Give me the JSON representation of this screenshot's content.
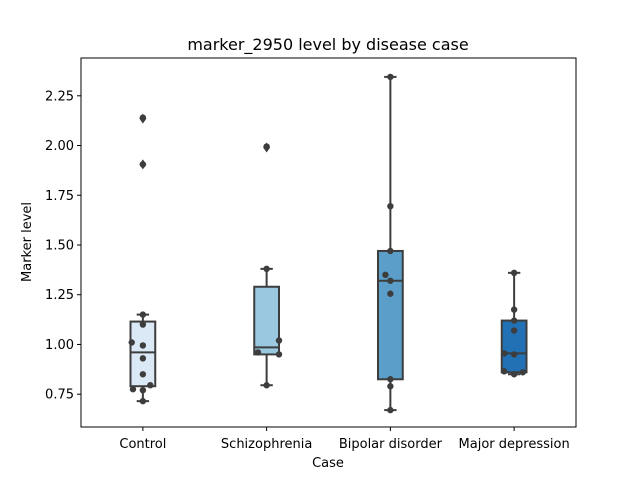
{
  "chart_data": {
    "type": "box",
    "title": "marker_2950 level by disease case",
    "xlabel": "Case",
    "ylabel": "Marker level",
    "ylim": [
      0.585,
      2.44
    ],
    "yticks": [
      0.75,
      1.0,
      1.25,
      1.5,
      1.75,
      2.0,
      2.25
    ],
    "ytick_labels": [
      "0.75",
      "1.00",
      "1.25",
      "1.50",
      "1.75",
      "2.00",
      "2.25"
    ],
    "categories": [
      "Control",
      "Schizophrenia",
      "Bipolar disorder",
      "Major depression"
    ],
    "colors": [
      "#dbe9f6",
      "#9ac8e0",
      "#5a9ec9",
      "#2271b5"
    ],
    "boxes": [
      {
        "q1": 0.79,
        "median": 0.96,
        "q3": 1.115,
        "whisker_low": 0.715,
        "whisker_high": 1.15,
        "outliers": [
          1.905,
          2.135
        ]
      },
      {
        "q1": 0.95,
        "median": 0.985,
        "q3": 1.29,
        "whisker_low": 0.795,
        "whisker_high": 1.38,
        "outliers": [
          1.99
        ]
      },
      {
        "q1": 0.825,
        "median": 1.32,
        "q3": 1.47,
        "whisker_low": 0.67,
        "whisker_high": 2.345,
        "outliers": []
      },
      {
        "q1": 0.86,
        "median": 0.955,
        "q3": 1.12,
        "whisker_low": 0.85,
        "whisker_high": 1.36,
        "outliers": []
      }
    ],
    "points": [
      [
        {
          "dx": 0.0,
          "y": 2.14
        },
        {
          "dx": 0.0,
          "y": 1.905
        },
        {
          "dx": 0.0,
          "y": 1.15
        },
        {
          "dx": 0.0,
          "y": 1.1
        },
        {
          "dx": -0.09,
          "y": 1.01
        },
        {
          "dx": 0.0,
          "y": 0.995
        },
        {
          "dx": 0.0,
          "y": 0.93
        },
        {
          "dx": 0.0,
          "y": 0.85
        },
        {
          "dx": 0.06,
          "y": 0.795
        },
        {
          "dx": -0.08,
          "y": 0.775
        },
        {
          "dx": 0.0,
          "y": 0.77
        },
        {
          "dx": 0.0,
          "y": 0.715
        }
      ],
      [
        {
          "dx": 0.0,
          "y": 1.995
        },
        {
          "dx": 0.0,
          "y": 1.38
        },
        {
          "dx": 0.1,
          "y": 1.02
        },
        {
          "dx": -0.07,
          "y": 0.96
        },
        {
          "dx": 0.1,
          "y": 0.95
        },
        {
          "dx": 0.0,
          "y": 0.795
        }
      ],
      [
        {
          "dx": 0.0,
          "y": 2.345
        },
        {
          "dx": 0.0,
          "y": 1.695
        },
        {
          "dx": 0.0,
          "y": 1.47
        },
        {
          "dx": -0.04,
          "y": 1.35
        },
        {
          "dx": 0.0,
          "y": 1.32
        },
        {
          "dx": 0.0,
          "y": 1.255
        },
        {
          "dx": 0.0,
          "y": 0.825
        },
        {
          "dx": 0.0,
          "y": 0.79
        },
        {
          "dx": 0.0,
          "y": 0.67
        }
      ],
      [
        {
          "dx": 0.0,
          "y": 1.36
        },
        {
          "dx": 0.0,
          "y": 1.175
        },
        {
          "dx": 0.0,
          "y": 1.12
        },
        {
          "dx": 0.0,
          "y": 1.07
        },
        {
          "dx": -0.08,
          "y": 0.955
        },
        {
          "dx": 0.0,
          "y": 0.95
        },
        {
          "dx": -0.08,
          "y": 0.865
        },
        {
          "dx": 0.07,
          "y": 0.86
        },
        {
          "dx": 0.0,
          "y": 0.85
        }
      ]
    ]
  }
}
